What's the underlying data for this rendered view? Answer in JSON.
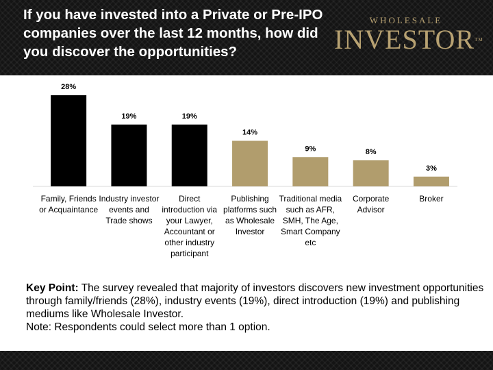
{
  "chart_data": {
    "type": "bar",
    "title": "If you have invested into a Private or Pre-IPO companies over the last 12 months, how did you discover the opportunities?",
    "categories": [
      "Family, Friends or Acquaintance",
      "Industry investor events and Trade shows",
      "Direct introduction via your Lawyer, Accountant or other industry participant",
      "Publishing platforms such as Wholesale Investor",
      "Traditional media such as AFR, SMH, The Age, Smart Company etc",
      "Corporate Advisor",
      "Broker"
    ],
    "values": [
      28,
      19,
      19,
      14,
      9,
      8,
      3
    ],
    "value_labels": [
      "28%",
      "19%",
      "19%",
      "14%",
      "9%",
      "8%",
      "3%"
    ],
    "colors": [
      "#000000",
      "#000000",
      "#000000",
      "#b19d6d",
      "#b19d6d",
      "#b19d6d",
      "#b19d6d"
    ]
  },
  "logo": {
    "top": "WHOLESALE",
    "main": "INVESTOR",
    "mark": "TM"
  },
  "key_point": {
    "label": "Key Point:",
    "text": "The survey revealed that majority of investors discovers new investment opportunities through family/friends (28%), industry events (19%), direct introduction (19%) and publishing mediums like Wholesale Investor."
  },
  "note": "Note: Respondents could select more than 1 option."
}
